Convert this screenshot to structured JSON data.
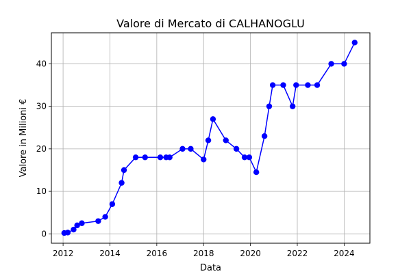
{
  "chart_data": {
    "type": "line",
    "title": "Valore di Mercato di CALHANOGLU",
    "xlabel": "Data",
    "ylabel": "Valore in Milioni €",
    "xlim": [
      2011.5,
      2025.1
    ],
    "ylim": [
      -2.2,
      47.3
    ],
    "x_ticks": [
      2012,
      2014,
      2016,
      2018,
      2020,
      2022,
      2024
    ],
    "y_ticks": [
      0,
      10,
      20,
      30,
      40
    ],
    "grid": true,
    "line_color": "#0000ff",
    "marker": "circle",
    "series": [
      {
        "x": [
          2012.05,
          2012.2,
          2012.45,
          2012.6,
          2012.8,
          2013.5,
          2013.8,
          2014.1,
          2014.5,
          2014.6,
          2015.1,
          2015.5,
          2016.15,
          2016.4,
          2016.55,
          2017.1,
          2017.45,
          2018.0,
          2018.2,
          2018.4,
          2018.95,
          2019.4,
          2019.75,
          2019.95,
          2020.25,
          2020.6,
          2020.8,
          2020.95,
          2021.4,
          2021.8,
          2021.95,
          2022.45,
          2022.85,
          2023.45,
          2024.0,
          2024.45
        ],
        "values": [
          0.2,
          0.3,
          1.0,
          2.0,
          2.5,
          3.0,
          4.0,
          7.0,
          12.0,
          15.0,
          18.0,
          18.0,
          18.0,
          18.0,
          18.0,
          20.0,
          20.0,
          17.5,
          22.0,
          27.0,
          22.0,
          20.0,
          18.0,
          18.0,
          14.5,
          23.0,
          30.0,
          35.0,
          35.0,
          30.0,
          35.0,
          35.0,
          35.0,
          40.0,
          40.0,
          45.0
        ]
      }
    ]
  }
}
